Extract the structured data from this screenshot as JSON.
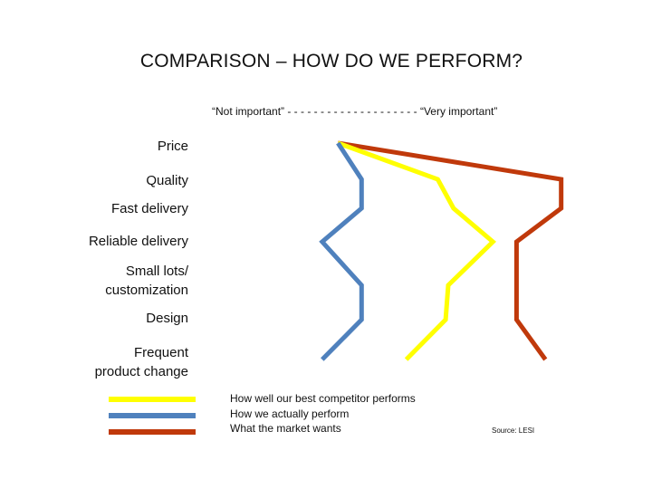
{
  "slide": {
    "title": "COMPARISON – HOW DO WE PERFORM?",
    "scale_header": "“Not important” - - - - - - - - - - - - - - - - - - - - “Very important”",
    "source": "Source: LESI"
  },
  "chart_data": {
    "type": "line",
    "orientation": "horizontal-profile",
    "categories": [
      "Price",
      "Quality",
      "Fast delivery",
      "Reliable delivery",
      "Small lots/\ncustomization",
      "Design",
      "Frequent\nproduct change"
    ],
    "xlabel": "“Not important” … “Very important”",
    "xlim": [
      0,
      10
    ],
    "grid": false,
    "legend_position": "bottom-left",
    "series": [
      {
        "name": "How well our best competitor performs",
        "color": "#FFFF00",
        "values": [
          0.8,
          4.6,
          5.2,
          6.7,
          5.0,
          4.9,
          3.4
        ]
      },
      {
        "name": "How we actually perform",
        "color": "#4F81BD",
        "values": [
          0.8,
          1.7,
          1.7,
          0.2,
          1.7,
          1.7,
          0.2
        ]
      },
      {
        "name": "What the market wants",
        "color": "#C0390B",
        "values": [
          0.8,
          9.3,
          9.3,
          7.6,
          7.6,
          7.6,
          8.7
        ]
      }
    ]
  }
}
